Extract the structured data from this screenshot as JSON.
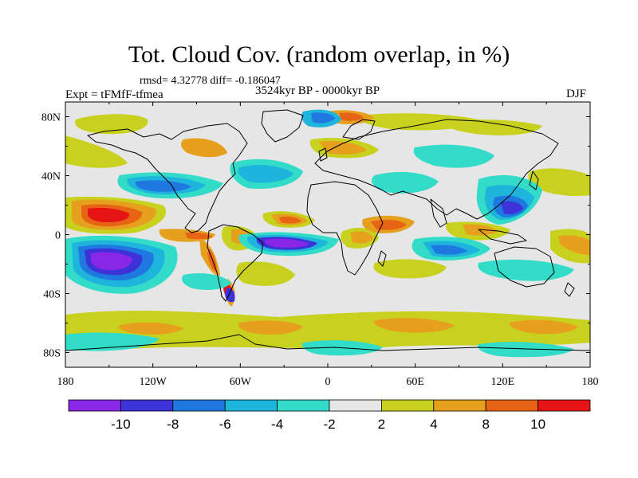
{
  "title": "Tot. Cloud Cov. (random overlap, in %)",
  "stats": {
    "rmsd_label": "rmsd=",
    "rmsd": "4.32778",
    "diff_label": "diff=",
    "diff": "-0.186047"
  },
  "experiment": "Expt = tFMfF-tfmea",
  "period": "3524kyr BP - 0000kyr BP",
  "season": "DJF",
  "map": {
    "projection": "cylindrical equidistant",
    "lon_range": [
      -180,
      180
    ],
    "lat_range": [
      -90,
      90
    ],
    "x_ticks": [
      "180",
      "120W",
      "60W",
      "0",
      "60E",
      "120E",
      "180"
    ],
    "y_ticks": [
      "80N",
      "40N",
      "0",
      "40S",
      "80S"
    ]
  },
  "colorbar": {
    "levels": [
      "-10",
      "-8",
      "-6",
      "-4",
      "-2",
      "2",
      "4",
      "8",
      "10"
    ],
    "colors": [
      "#8a26e6",
      "#3c32d8",
      "#1e78e0",
      "#1eb4dc",
      "#32dcc8",
      "#e6e6e6",
      "#c8d21e",
      "#e6a01e",
      "#e66414",
      "#e61414"
    ]
  }
}
